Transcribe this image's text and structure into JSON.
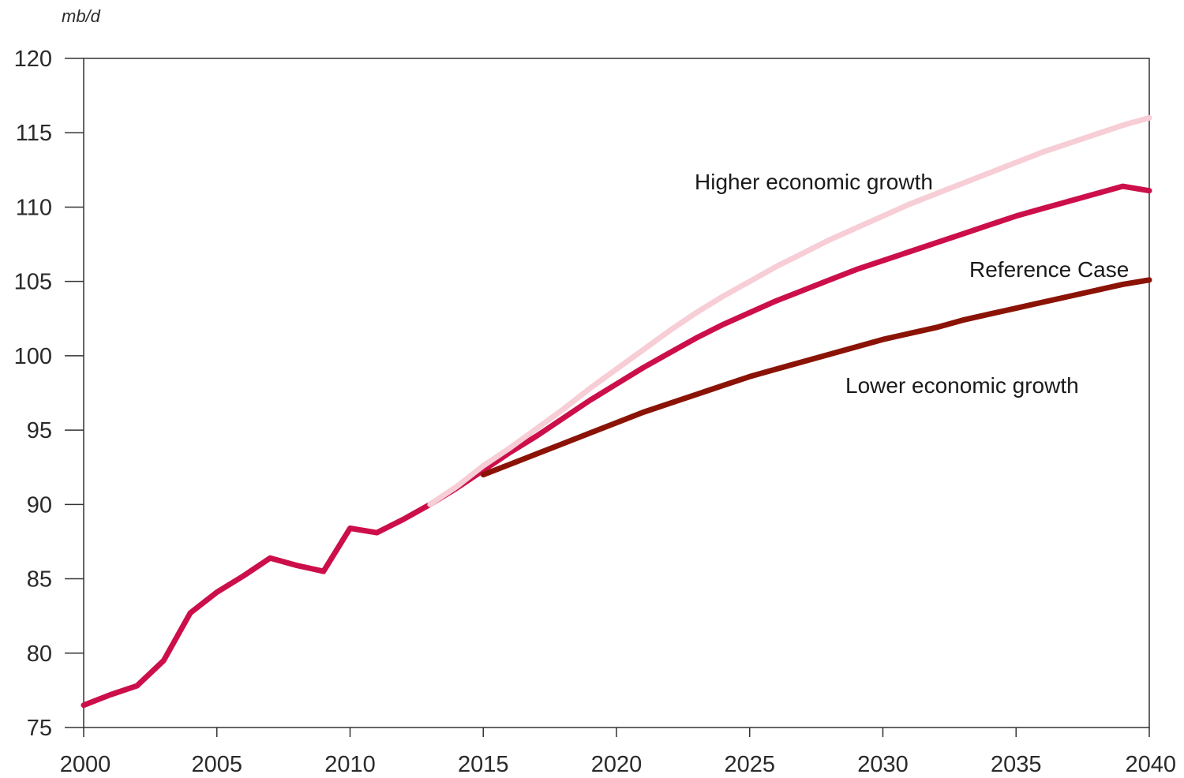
{
  "chart_data": {
    "type": "line",
    "unit_label": "mb/d",
    "xlim": [
      2000,
      2040
    ],
    "ylim": [
      75,
      120
    ],
    "x_ticks": [
      "2000",
      "2005",
      "2010",
      "2015",
      "2020",
      "2025",
      "2030",
      "2035",
      "2040"
    ],
    "y_ticks": [
      "75",
      "80",
      "85",
      "90",
      "95",
      "100",
      "105",
      "110",
      "115",
      "120"
    ],
    "grid": false,
    "series": [
      {
        "name": "Higher economic growth",
        "color": "#f7cdd6",
        "x": [
          2013,
          2014,
          2015,
          2016,
          2017,
          2018,
          2019,
          2020,
          2021,
          2022,
          2023,
          2024,
          2025,
          2026,
          2027,
          2028,
          2029,
          2030,
          2031,
          2032,
          2033,
          2034,
          2035,
          2036,
          2037,
          2038,
          2039,
          2040
        ],
        "y": [
          90.0,
          91.2,
          92.6,
          93.8,
          95.1,
          96.4,
          97.8,
          99.1,
          100.4,
          101.7,
          102.9,
          104.0,
          105.0,
          106.0,
          106.9,
          107.8,
          108.6,
          109.4,
          110.2,
          110.9,
          111.6,
          112.3,
          113.0,
          113.7,
          114.3,
          114.9,
          115.5,
          116.0
        ]
      },
      {
        "name": "Reference Case",
        "color": "#cc0f4a",
        "x": [
          2000,
          2001,
          2002,
          2003,
          2004,
          2005,
          2006,
          2007,
          2008,
          2009,
          2010,
          2011,
          2012,
          2013,
          2014,
          2015,
          2016,
          2017,
          2018,
          2019,
          2020,
          2021,
          2022,
          2023,
          2024,
          2025,
          2026,
          2027,
          2028,
          2029,
          2030,
          2031,
          2032,
          2033,
          2034,
          2035,
          2036,
          2037,
          2038,
          2039,
          2040
        ],
        "y": [
          76.5,
          77.2,
          77.8,
          79.5,
          82.7,
          84.1,
          85.2,
          86.4,
          85.9,
          85.5,
          88.4,
          88.1,
          89.0,
          90.0,
          91.1,
          92.3,
          93.5,
          94.6,
          95.8,
          97.0,
          98.1,
          99.2,
          100.2,
          101.2,
          102.1,
          102.9,
          103.7,
          104.4,
          105.1,
          105.8,
          106.4,
          107.0,
          107.6,
          108.2,
          108.8,
          109.4,
          109.9,
          110.4,
          110.9,
          111.4,
          111.1
        ]
      },
      {
        "name": "Lower economic growth",
        "color": "#8b1306",
        "x": [
          2015,
          2016,
          2017,
          2018,
          2019,
          2020,
          2021,
          2022,
          2023,
          2024,
          2025,
          2026,
          2027,
          2028,
          2029,
          2030,
          2031,
          2032,
          2033,
          2034,
          2035,
          2036,
          2037,
          2038,
          2039,
          2040
        ],
        "y": [
          92.0,
          92.7,
          93.4,
          94.1,
          94.8,
          95.5,
          96.2,
          96.8,
          97.4,
          98.0,
          98.6,
          99.1,
          99.6,
          100.1,
          100.6,
          101.1,
          101.5,
          101.9,
          102.4,
          102.8,
          103.2,
          103.6,
          104.0,
          104.4,
          104.8,
          105.1
        ]
      }
    ]
  }
}
